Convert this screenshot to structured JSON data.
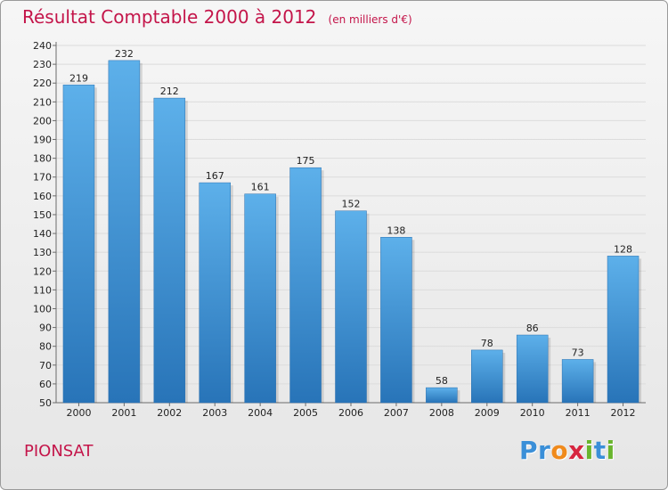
{
  "title": "Résultat Comptable 2000 à 2012",
  "unit_note": "(en milliers d'€)",
  "location": "PIONSAT",
  "logo": {
    "letters": [
      {
        "char": "P",
        "color": "#3a8fd8"
      },
      {
        "char": "r",
        "color": "#3a8fd8"
      },
      {
        "char": "o",
        "color": "#f08a1c"
      },
      {
        "char": "x",
        "color": "#d7253f"
      },
      {
        "char": "i",
        "color": "#69b52d"
      },
      {
        "char": "t",
        "color": "#3a8fd8"
      },
      {
        "char": "i",
        "color": "#69b52d"
      }
    ]
  },
  "colors": {
    "accent": "#c4154a",
    "bar_top": "#5db0ea",
    "bar_bottom": "#2874b8",
    "grid": "#dcdcdc",
    "axis": "#6b6b6b"
  },
  "chart_data": {
    "type": "bar",
    "categories": [
      "2000",
      "2001",
      "2002",
      "2003",
      "2004",
      "2005",
      "2006",
      "2007",
      "2008",
      "2009",
      "2010",
      "2011",
      "2012"
    ],
    "values": [
      219,
      232,
      212,
      167,
      161,
      175,
      152,
      138,
      58,
      78,
      86,
      73,
      128
    ],
    "title": "Résultat Comptable 2000 à 2012",
    "ylim": [
      50,
      240
    ],
    "yticks": [
      50,
      60,
      70,
      80,
      90,
      100,
      110,
      120,
      130,
      140,
      150,
      160,
      170,
      180,
      190,
      200,
      210,
      220,
      230,
      240
    ],
    "grid": true,
    "data_labels": true
  }
}
